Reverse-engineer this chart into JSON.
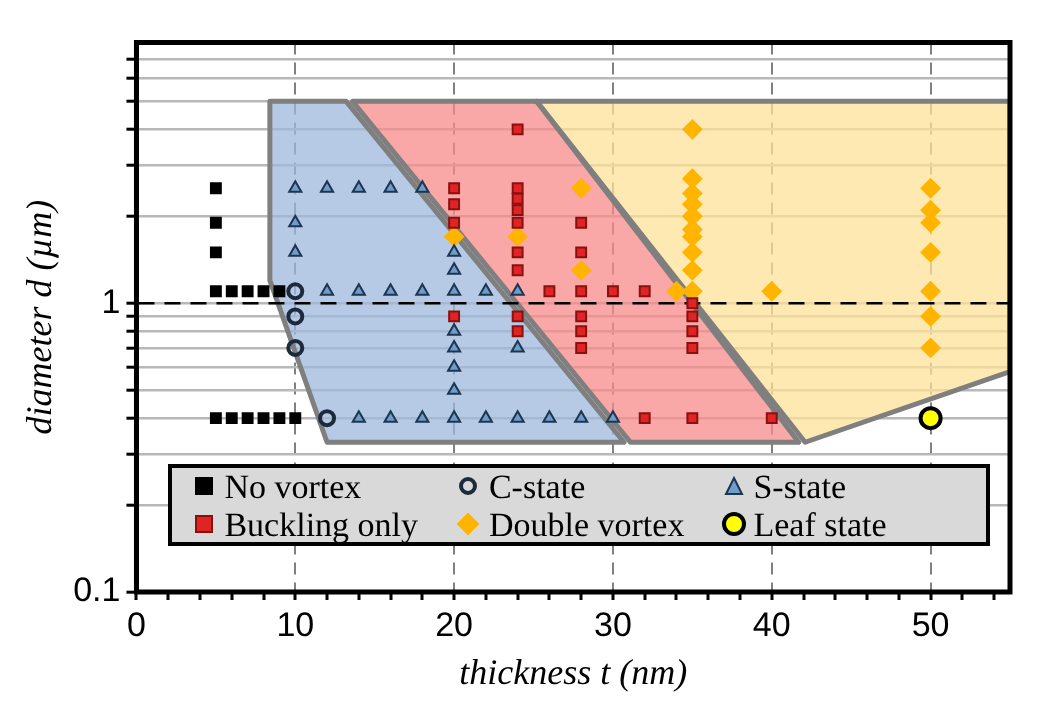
{
  "chart_data": {
    "type": "scatter",
    "xlabel": "thickness t (nm)",
    "ylabel": "diameter d (µm)",
    "xlim": [
      0,
      55
    ],
    "xticks": [
      0,
      {
        "value": 2,
        "label": null
      },
      {
        "value": 4,
        "label": null
      },
      {
        "value": 6,
        "label": null
      },
      {
        "value": 8,
        "label": null
      },
      10,
      {
        "value": 12,
        "label": null
      },
      {
        "value": 14,
        "label": null
      },
      {
        "value": 16,
        "label": null
      },
      {
        "value": 18,
        "label": null
      },
      20,
      {
        "value": 22,
        "label": null
      },
      {
        "value": 24,
        "label": null
      },
      {
        "value": 26,
        "label": null
      },
      {
        "value": 28,
        "label": null
      },
      30,
      {
        "value": 32,
        "label": null
      },
      {
        "value": 34,
        "label": null
      },
      {
        "value": 36,
        "label": null
      },
      {
        "value": 38,
        "label": null
      },
      40,
      {
        "value": 42,
        "label": null
      },
      {
        "value": 44,
        "label": null
      },
      {
        "value": 46,
        "label": null
      },
      {
        "value": 48,
        "label": null
      },
      50,
      {
        "value": 52,
        "label": null
      },
      {
        "value": 54,
        "label": null
      }
    ],
    "ylim": [
      0.1,
      8
    ],
    "log": "y",
    "yticks": [
      0.1,
      {
        "value": 0.2,
        "label": null
      },
      {
        "value": 0.3,
        "label": null
      },
      {
        "value": 0.4,
        "label": null
      },
      {
        "value": 0.5,
        "label": null
      },
      {
        "value": 0.6,
        "label": null
      },
      {
        "value": 0.7,
        "label": null
      },
      {
        "value": 0.8,
        "label": null
      },
      {
        "value": 0.9,
        "label": null
      },
      1,
      {
        "value": 2,
        "label": null
      },
      {
        "value": 3,
        "label": null
      },
      {
        "value": 4,
        "label": null
      },
      {
        "value": 5,
        "label": null
      },
      {
        "value": 6,
        "label": null
      },
      {
        "value": 7,
        "label": null
      }
    ],
    "grid": true,
    "legend": "bottom",
    "ref_lines": [
      {
        "axis": "y",
        "value": 1,
        "color": "#000000",
        "line_style": "dashed"
      }
    ],
    "series": [
      {
        "type": "area",
        "color": "#9fb8dc",
        "x": [
          8.4,
          13.2,
          30.7,
          12,
          8.4
        ],
        "values": [
          5,
          5,
          0.33,
          0.33,
          1.2
        ]
      },
      {
        "type": "area",
        "color": "#f78a8a",
        "x": [
          13.6,
          25.2,
          41.7,
          31.1
        ],
        "values": [
          5,
          5,
          0.33,
          0.33
        ]
      },
      {
        "type": "area",
        "color": "#fde29a",
        "x": [
          25.2,
          55,
          55,
          42.1
        ],
        "values": [
          5,
          5,
          0.58,
          0.33
        ]
      },
      {
        "name": "No vortex",
        "marker": "square",
        "color": "#000000",
        "x": [
          5,
          5,
          5,
          5,
          6,
          7,
          8,
          9,
          5,
          6,
          7,
          8,
          9,
          10
        ],
        "values": [
          2.5,
          1.9,
          1.5,
          1.1,
          1.1,
          1.1,
          1.1,
          1.1,
          0.4,
          0.4,
          0.4,
          0.4,
          0.4,
          0.4
        ]
      },
      {
        "name": "C-state",
        "marker": "circle",
        "color": "#1c2b3c",
        "x": [
          10,
          10,
          10,
          12
        ],
        "values": [
          1.1,
          0.9,
          0.7,
          0.4
        ]
      },
      {
        "name": "S-state",
        "marker": "triangle",
        "color": "#6f9cc8",
        "x": [
          10,
          12,
          14,
          16,
          18,
          10,
          10,
          12,
          14,
          16,
          18,
          20,
          22,
          24,
          20,
          20,
          20,
          20,
          20,
          20,
          24,
          14,
          16,
          18,
          20,
          22,
          24,
          26,
          28,
          30
        ],
        "values": [
          2.5,
          2.5,
          2.5,
          2.5,
          2.5,
          1.9,
          1.5,
          1.1,
          1.1,
          1.1,
          1.1,
          1.1,
          1.1,
          1.1,
          1.5,
          1.3,
          0.8,
          0.7,
          0.6,
          0.5,
          0.7,
          0.4,
          0.4,
          0.4,
          0.4,
          0.4,
          0.4,
          0.4,
          0.4,
          0.4
        ]
      },
      {
        "name": "Buckling only",
        "marker": "square",
        "color": "#e02424",
        "x": [
          20,
          20,
          20,
          20,
          24,
          24,
          24,
          24,
          24,
          24,
          24,
          24,
          24,
          26,
          28,
          28,
          28,
          28,
          28,
          28,
          30,
          32,
          35,
          35,
          35,
          35,
          32,
          35,
          40
        ],
        "values": [
          2.5,
          2.2,
          1.9,
          0.9,
          4,
          2.5,
          2.3,
          2.1,
          1.9,
          1.5,
          1.3,
          0.9,
          0.8,
          1.1,
          1.9,
          1.5,
          1.1,
          0.9,
          0.8,
          0.7,
          1.1,
          1.1,
          1,
          0.9,
          0.8,
          0.7,
          0.4,
          0.4,
          0.4
        ]
      },
      {
        "name": "Double vortex",
        "marker": "diamond",
        "color": "#ffb400",
        "x": [
          20,
          24,
          28,
          28,
          34,
          35,
          35,
          35,
          35,
          35,
          35,
          35,
          35,
          35,
          35,
          40,
          50,
          50,
          50,
          50,
          50,
          50,
          50
        ],
        "values": [
          1.7,
          1.7,
          2.5,
          1.3,
          1.1,
          4,
          2.7,
          2.4,
          2.2,
          2,
          1.8,
          1.7,
          1.5,
          1.3,
          1.1,
          1.1,
          2.5,
          2.1,
          1.9,
          1.5,
          1.1,
          0.9,
          0.7
        ]
      },
      {
        "name": "Leaf state",
        "marker": "circle",
        "color": "#ffff00",
        "x": [
          50
        ],
        "values": [
          0.4
        ]
      }
    ]
  }
}
